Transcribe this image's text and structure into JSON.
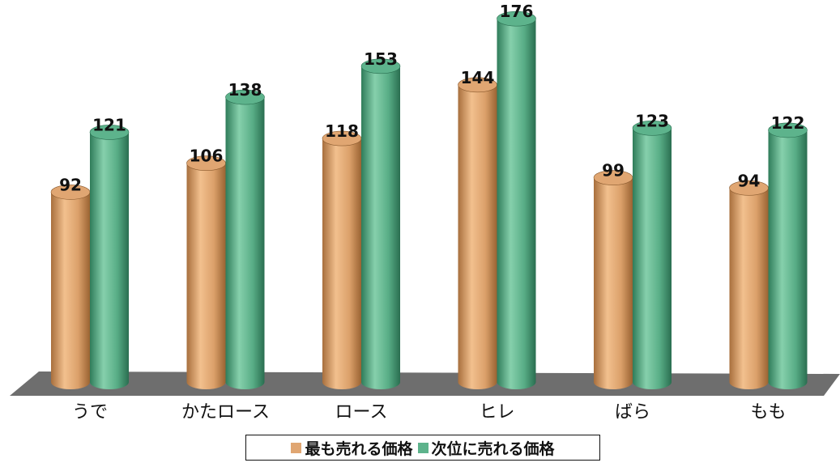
{
  "chart_data": {
    "type": "bar",
    "categories": [
      "うで",
      "かたロース",
      "ロース",
      "ヒレ",
      "ばら",
      "もも"
    ],
    "series": [
      {
        "name": "最も売れる価格",
        "values": [
          92,
          106,
          118,
          144,
          99,
          94
        ],
        "labels": [
          "92",
          "106",
          "118",
          "144",
          "99",
          "94"
        ],
        "color": "#e0a672"
      },
      {
        "name": "次位に売れる価格",
        "values": [
          121,
          138,
          153,
          176,
          123,
          122
        ],
        "labels": [
          "121",
          "138",
          "153",
          "176",
          "123",
          "122"
        ],
        "color": "#5db38c"
      }
    ],
    "style": "3d-cylinder",
    "ylim": [
      0,
      180
    ],
    "grid": false,
    "legend_position": "bottom",
    "floor_color": "#6e6e6e"
  }
}
